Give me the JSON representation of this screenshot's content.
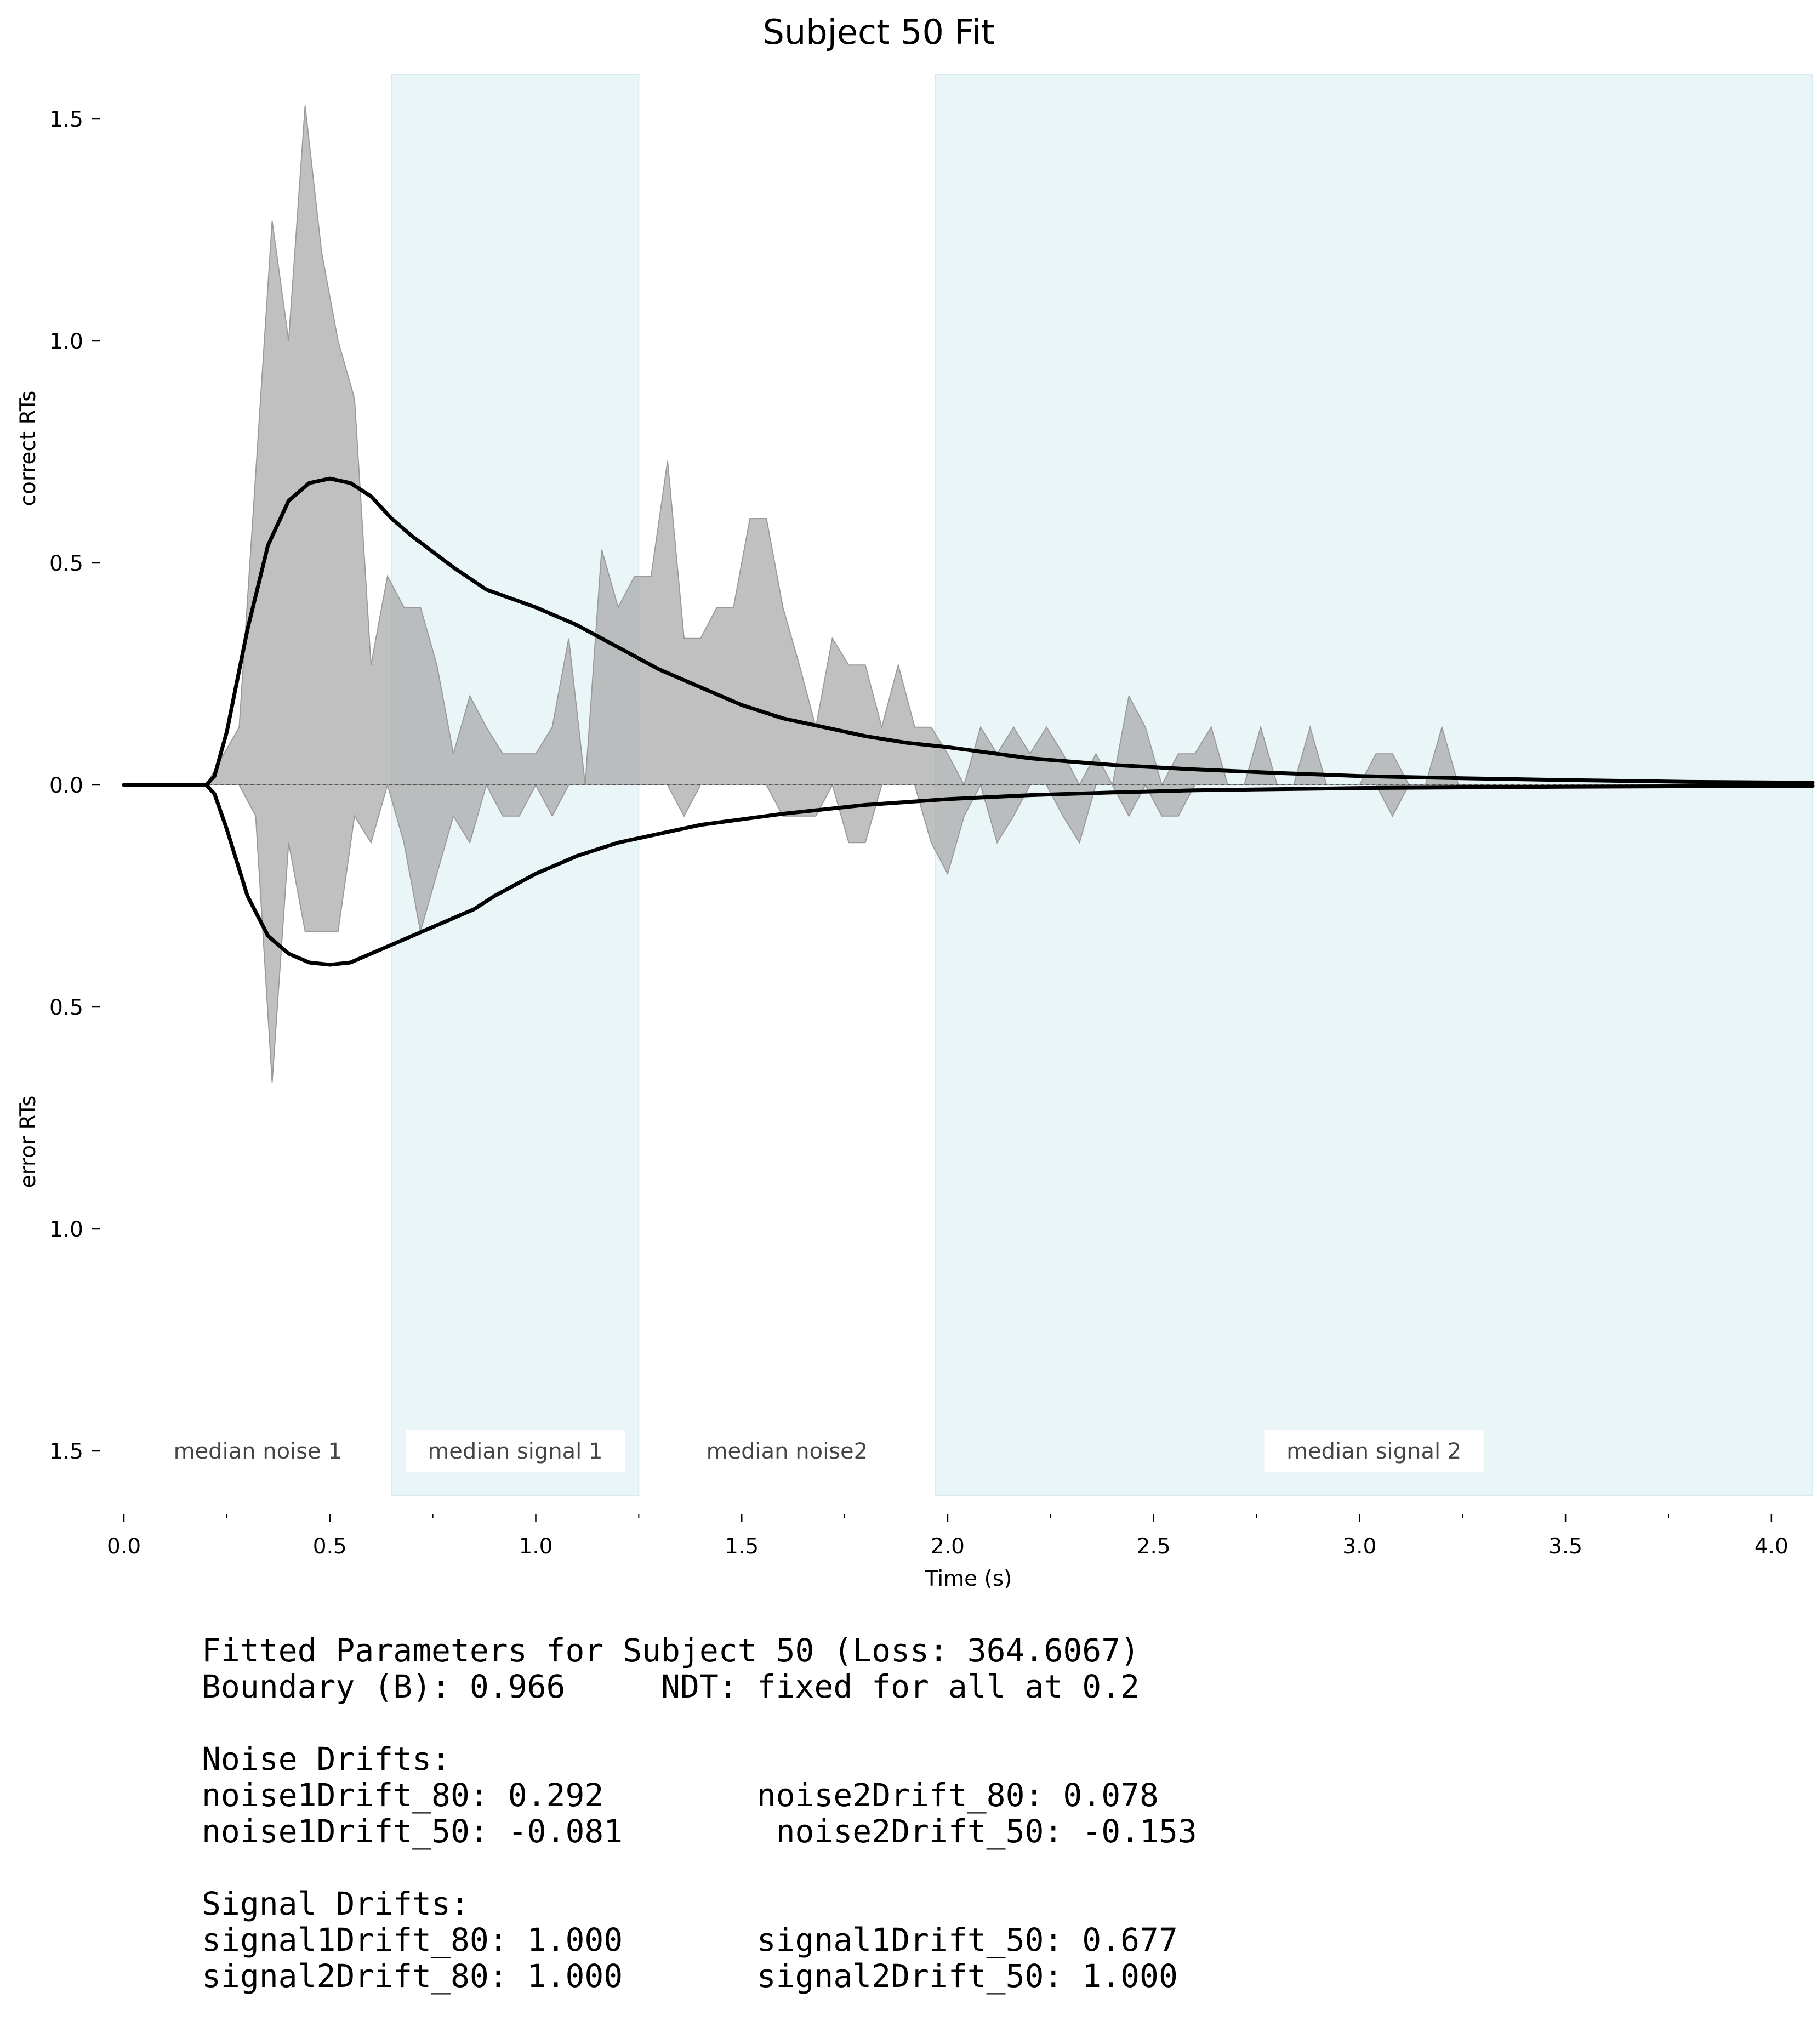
{
  "chart_data": {
    "type": "area",
    "title": "Subject 50 Fit",
    "xlabel": "Time (s)",
    "ylabel_upper": "correct RTs",
    "ylabel_lower": "error RTs",
    "xlim": [
      0,
      4.1
    ],
    "ylim": [
      -1.6,
      1.6
    ],
    "x_ticks": [
      0.0,
      0.5,
      1.0,
      1.5,
      2.0,
      2.5,
      3.0,
      3.5,
      4.0
    ],
    "x_tick_labels": [
      "0.0",
      "0.5",
      "1.0",
      "1.5",
      "2.0",
      "2.5",
      "3.0",
      "3.5",
      "4.0"
    ],
    "x_minor_ticks": [
      0.25,
      0.75,
      1.25,
      1.75,
      2.25,
      2.75,
      3.25,
      3.75
    ],
    "y_ticks": [
      1.5,
      1.0,
      0.5,
      0.0,
      -0.5,
      -1.0,
      -1.5
    ],
    "y_tick_labels": [
      "1.5",
      "1.0",
      "0.5",
      "0.0",
      "0.5",
      "1.0",
      "1.5"
    ],
    "regions": [
      {
        "label": "median noise 1",
        "x0": 0.0,
        "x1": 0.65,
        "shaded": false
      },
      {
        "label": "median signal 1",
        "x0": 0.65,
        "x1": 1.25,
        "shaded": true
      },
      {
        "label": "median noise2",
        "x0": 1.25,
        "x1": 1.97,
        "shaded": false
      },
      {
        "label": "median signal 2",
        "x0": 1.97,
        "x1": 4.1,
        "shaded": true
      }
    ],
    "colors": {
      "shade": "#e9f5f7",
      "hist": "#a8a8a8",
      "model": "#000000"
    },
    "correct_hist": {
      "x": [
        0,
        0.2,
        0.28,
        0.36,
        0.4,
        0.44,
        0.48,
        0.52,
        0.56,
        0.6,
        0.64,
        0.68,
        0.72,
        0.76,
        0.8,
        0.84,
        0.88,
        0.92,
        0.96,
        1.0,
        1.04,
        1.08,
        1.12,
        1.16,
        1.2,
        1.24,
        1.28,
        1.32,
        1.36,
        1.4,
        1.44,
        1.48,
        1.52,
        1.56,
        1.6,
        1.64,
        1.68,
        1.72,
        1.76,
        1.8,
        1.84,
        1.88,
        1.92,
        1.96,
        2.0,
        2.04,
        2.08,
        2.12,
        2.16,
        2.2,
        2.24,
        2.28,
        2.32,
        2.36,
        2.4,
        2.44,
        2.48,
        2.52,
        2.56,
        2.6,
        2.64,
        2.68,
        2.72,
        2.76,
        2.8,
        2.84,
        2.88,
        2.92,
        2.96,
        3.0,
        3.04,
        3.08,
        3.12,
        3.16,
        3.2,
        3.24,
        3.28,
        4.1
      ],
      "y": [
        0,
        0,
        0.13,
        1.27,
        1.0,
        1.53,
        1.2,
        1.0,
        0.87,
        0.27,
        0.47,
        0.4,
        0.4,
        0.27,
        0.07,
        0.2,
        0.13,
        0.07,
        0.07,
        0.07,
        0.13,
        0.33,
        0.0,
        0.53,
        0.4,
        0.47,
        0.47,
        0.73,
        0.33,
        0.33,
        0.4,
        0.4,
        0.6,
        0.6,
        0.4,
        0.27,
        0.13,
        0.33,
        0.27,
        0.27,
        0.13,
        0.27,
        0.13,
        0.13,
        0.07,
        0.0,
        0.13,
        0.07,
        0.13,
        0.07,
        0.13,
        0.07,
        0.0,
        0.07,
        0.0,
        0.2,
        0.13,
        0.0,
        0.07,
        0.07,
        0.13,
        0.0,
        0.0,
        0.13,
        0.0,
        0.0,
        0.13,
        0.0,
        0.0,
        0.0,
        0.07,
        0.07,
        0.0,
        0.0,
        0.13,
        0.0,
        0.0,
        0
      ]
    },
    "error_hist": {
      "x": [
        0,
        0.2,
        0.28,
        0.32,
        0.36,
        0.4,
        0.44,
        0.48,
        0.52,
        0.56,
        0.6,
        0.64,
        0.68,
        0.72,
        0.76,
        0.8,
        0.84,
        0.88,
        0.92,
        0.96,
        1.0,
        1.04,
        1.08,
        1.12,
        1.16,
        1.2,
        1.24,
        1.28,
        1.32,
        1.36,
        1.4,
        1.44,
        1.48,
        1.52,
        1.56,
        1.6,
        1.64,
        1.68,
        1.72,
        1.76,
        1.8,
        1.84,
        1.88,
        1.92,
        1.96,
        2.0,
        2.04,
        2.08,
        2.12,
        2.16,
        2.2,
        2.24,
        2.28,
        2.32,
        2.36,
        2.4,
        2.44,
        2.48,
        2.52,
        2.56,
        2.6,
        2.64,
        2.68,
        2.72,
        2.76,
        2.8,
        2.84,
        2.88,
        2.92,
        2.96,
        3.0,
        3.04,
        3.08,
        3.12,
        3.16,
        3.2,
        4.1
      ],
      "y": [
        0,
        0,
        0,
        -0.07,
        -0.67,
        -0.13,
        -0.33,
        -0.33,
        -0.33,
        -0.07,
        -0.13,
        0.0,
        -0.13,
        -0.33,
        -0.2,
        -0.07,
        -0.13,
        0.0,
        -0.07,
        -0.07,
        0.0,
        -0.07,
        0.0,
        0.0,
        0.0,
        0.0,
        0.0,
        0.0,
        0.0,
        -0.07,
        0.0,
        0.0,
        0.0,
        0.0,
        0.0,
        -0.07,
        -0.07,
        -0.07,
        0.0,
        -0.13,
        -0.13,
        0.0,
        0.0,
        0.0,
        -0.13,
        -0.2,
        -0.07,
        0.0,
        -0.13,
        -0.07,
        0.0,
        0.0,
        -0.07,
        -0.13,
        0.0,
        0.0,
        -0.07,
        0.0,
        -0.07,
        -0.07,
        0.0,
        0.0,
        0.0,
        0.0,
        0.0,
        0.0,
        0.0,
        0.0,
        0.0,
        0.0,
        0.0,
        0.0,
        -0.07,
        0.0,
        0.0,
        0.0,
        0
      ]
    },
    "model_correct": {
      "x": [
        0,
        0.2,
        0.22,
        0.25,
        0.3,
        0.35,
        0.4,
        0.45,
        0.5,
        0.55,
        0.6,
        0.65,
        0.7,
        0.8,
        0.88,
        1.0,
        1.1,
        1.2,
        1.3,
        1.4,
        1.5,
        1.6,
        1.7,
        1.8,
        1.9,
        2.0,
        2.2,
        2.4,
        2.6,
        2.8,
        3.0,
        3.2,
        3.5,
        3.8,
        4.1
      ],
      "y": [
        0,
        0,
        0.02,
        0.12,
        0.35,
        0.54,
        0.64,
        0.68,
        0.69,
        0.68,
        0.65,
        0.6,
        0.56,
        0.49,
        0.44,
        0.4,
        0.36,
        0.31,
        0.26,
        0.22,
        0.18,
        0.15,
        0.13,
        0.11,
        0.095,
        0.085,
        0.06,
        0.045,
        0.035,
        0.027,
        0.02,
        0.016,
        0.011,
        0.007,
        0.005
      ]
    },
    "model_error": {
      "x": [
        0,
        0.2,
        0.22,
        0.25,
        0.3,
        0.35,
        0.4,
        0.45,
        0.5,
        0.55,
        0.6,
        0.65,
        0.7,
        0.8,
        0.85,
        0.9,
        1.0,
        1.1,
        1.2,
        1.3,
        1.4,
        1.6,
        1.8,
        2.0,
        2.2,
        2.4,
        2.6,
        3.0,
        3.5,
        4.1
      ],
      "y": [
        0,
        0,
        -0.02,
        -0.1,
        -0.25,
        -0.34,
        -0.38,
        -0.4,
        -0.405,
        -0.4,
        -0.38,
        -0.36,
        -0.34,
        -0.3,
        -0.28,
        -0.25,
        -0.2,
        -0.16,
        -0.13,
        -0.11,
        -0.09,
        -0.065,
        -0.045,
        -0.032,
        -0.023,
        -0.017,
        -0.012,
        -0.007,
        -0.004,
        -0.002
      ]
    }
  },
  "parameters": {
    "lines": [
      "Fitted Parameters for Subject 50 (Loss: 364.6067)",
      "Boundary (B): 0.966     NDT: fixed for all at 0.2",
      "",
      "Noise Drifts:",
      "noise1Drift_80: 0.292        noise2Drift_80: 0.078",
      "noise1Drift_50: -0.081        noise2Drift_50: -0.153",
      "",
      "Signal Drifts:",
      "signal1Drift_80: 1.000       signal1Drift_50: 0.677",
      "signal2Drift_80: 1.000       signal2Drift_50: 1.000"
    ]
  }
}
